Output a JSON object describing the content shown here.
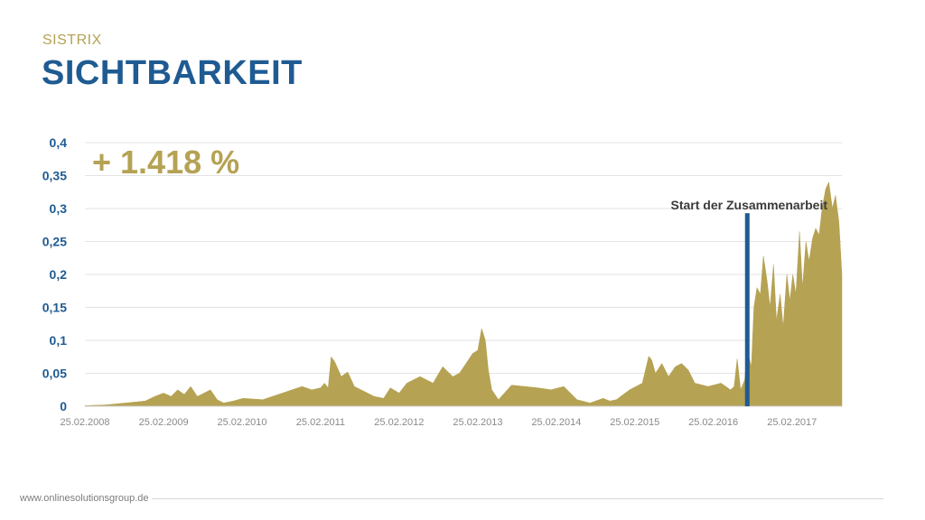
{
  "header": {
    "kicker": "SISTRIX",
    "title": "SICHTBARKEIT"
  },
  "footer": {
    "url": "www.onlinesolutionsgroup.de"
  },
  "colors": {
    "area": "#b5a253",
    "marker": "#1f5b92",
    "axis_label": "#1f5b92",
    "annotation": "#3a3a3a"
  },
  "chart_data": {
    "type": "area",
    "highlight": "+ 1.418 %",
    "annotation": {
      "text": "Start der Zusammenarbeit",
      "x": "2016-08-01",
      "y": 0.293
    },
    "ylim": [
      0,
      0.4
    ],
    "yticks": [
      0,
      0.05,
      0.1,
      0.15,
      0.2,
      0.25,
      0.3,
      0.35,
      0.4
    ],
    "ytick_labels": [
      "0",
      "0,05",
      "0,1",
      "0,15",
      "0,2",
      "0,25",
      "0,3",
      "0,35",
      "0,4"
    ],
    "xlim": [
      "2008-02-25",
      "2017-10-15"
    ],
    "xticks": [
      "2008-02-25",
      "2009-02-25",
      "2010-02-25",
      "2011-02-25",
      "2012-02-25",
      "2013-02-25",
      "2014-02-25",
      "2015-02-25",
      "2016-02-25",
      "2017-02-25"
    ],
    "xtick_labels": [
      "25.02.2008",
      "25.02.2009",
      "25.02.2010",
      "25.02.2011",
      "25.02.2012",
      "25.02.2013",
      "25.02.2014",
      "25.02.2015",
      "25.02.2016",
      "25.02.2017"
    ],
    "grid": true,
    "series": [
      {
        "x": [
          "2008-02-25",
          "2008-06-01",
          "2008-09-01",
          "2008-12-01",
          "2009-01-15",
          "2009-02-25",
          "2009-04-01",
          "2009-05-01",
          "2009-06-01",
          "2009-07-01",
          "2009-08-01",
          "2009-09-01",
          "2009-10-01",
          "2009-11-01",
          "2009-12-01",
          "2010-01-15",
          "2010-03-01",
          "2010-06-01",
          "2010-09-01",
          "2010-10-15",
          "2010-12-01",
          "2011-01-15",
          "2011-02-25",
          "2011-03-15",
          "2011-04-01",
          "2011-04-15",
          "2011-05-01",
          "2011-06-01",
          "2011-07-01",
          "2011-08-01",
          "2011-09-01",
          "2011-11-01",
          "2011-12-15",
          "2012-01-15",
          "2012-02-25",
          "2012-04-01",
          "2012-06-01",
          "2012-08-01",
          "2012-09-15",
          "2012-11-01",
          "2012-12-01",
          "2013-01-01",
          "2013-02-01",
          "2013-02-25",
          "2013-03-15",
          "2013-04-01",
          "2013-04-15",
          "2013-05-01",
          "2013-06-01",
          "2013-08-01",
          "2013-10-01",
          "2013-12-01",
          "2014-02-01",
          "2014-04-01",
          "2014-06-01",
          "2014-08-01",
          "2014-10-01",
          "2014-11-01",
          "2014-12-01",
          "2015-02-01",
          "2015-04-01",
          "2015-05-01",
          "2015-05-15",
          "2015-06-01",
          "2015-07-01",
          "2015-08-01",
          "2015-09-01",
          "2015-10-01",
          "2015-11-01",
          "2015-12-01",
          "2016-02-01",
          "2016-04-01",
          "2016-05-15",
          "2016-06-01",
          "2016-06-15",
          "2016-07-01",
          "2016-07-20",
          "2016-08-01",
          "2016-08-20",
          "2016-09-01",
          "2016-09-15",
          "2016-10-01",
          "2016-10-15",
          "2016-11-01",
          "2016-11-15",
          "2016-12-01",
          "2016-12-15",
          "2017-01-01",
          "2017-01-15",
          "2017-02-01",
          "2017-02-15",
          "2017-03-01",
          "2017-03-15",
          "2017-04-01",
          "2017-04-15",
          "2017-05-01",
          "2017-05-15",
          "2017-06-01",
          "2017-06-15",
          "2017-07-01",
          "2017-07-15",
          "2017-08-01",
          "2017-08-15",
          "2017-09-01",
          "2017-09-15",
          "2017-10-01",
          "2017-10-15"
        ],
        "values": [
          0.001,
          0.002,
          0.005,
          0.008,
          0.015,
          0.02,
          0.015,
          0.025,
          0.018,
          0.03,
          0.015,
          0.02,
          0.025,
          0.01,
          0.005,
          0.008,
          0.012,
          0.01,
          0.02,
          0.025,
          0.03,
          0.025,
          0.028,
          0.035,
          0.028,
          0.075,
          0.068,
          0.045,
          0.052,
          0.03,
          0.025,
          0.015,
          0.012,
          0.028,
          0.02,
          0.035,
          0.045,
          0.035,
          0.06,
          0.045,
          0.05,
          0.065,
          0.08,
          0.085,
          0.118,
          0.1,
          0.055,
          0.025,
          0.01,
          0.032,
          0.03,
          0.028,
          0.025,
          0.03,
          0.01,
          0.005,
          0.012,
          0.008,
          0.01,
          0.025,
          0.035,
          0.076,
          0.07,
          0.05,
          0.065,
          0.045,
          0.06,
          0.065,
          0.055,
          0.035,
          0.03,
          0.035,
          0.025,
          0.03,
          0.072,
          0.025,
          0.04,
          0.085,
          0.06,
          0.15,
          0.18,
          0.17,
          0.228,
          0.19,
          0.15,
          0.215,
          0.13,
          0.17,
          0.12,
          0.2,
          0.16,
          0.2,
          0.17,
          0.265,
          0.18,
          0.25,
          0.22,
          0.255,
          0.27,
          0.26,
          0.3,
          0.33,
          0.34,
          0.3,
          0.32,
          0.28,
          0.2
        ]
      }
    ]
  }
}
